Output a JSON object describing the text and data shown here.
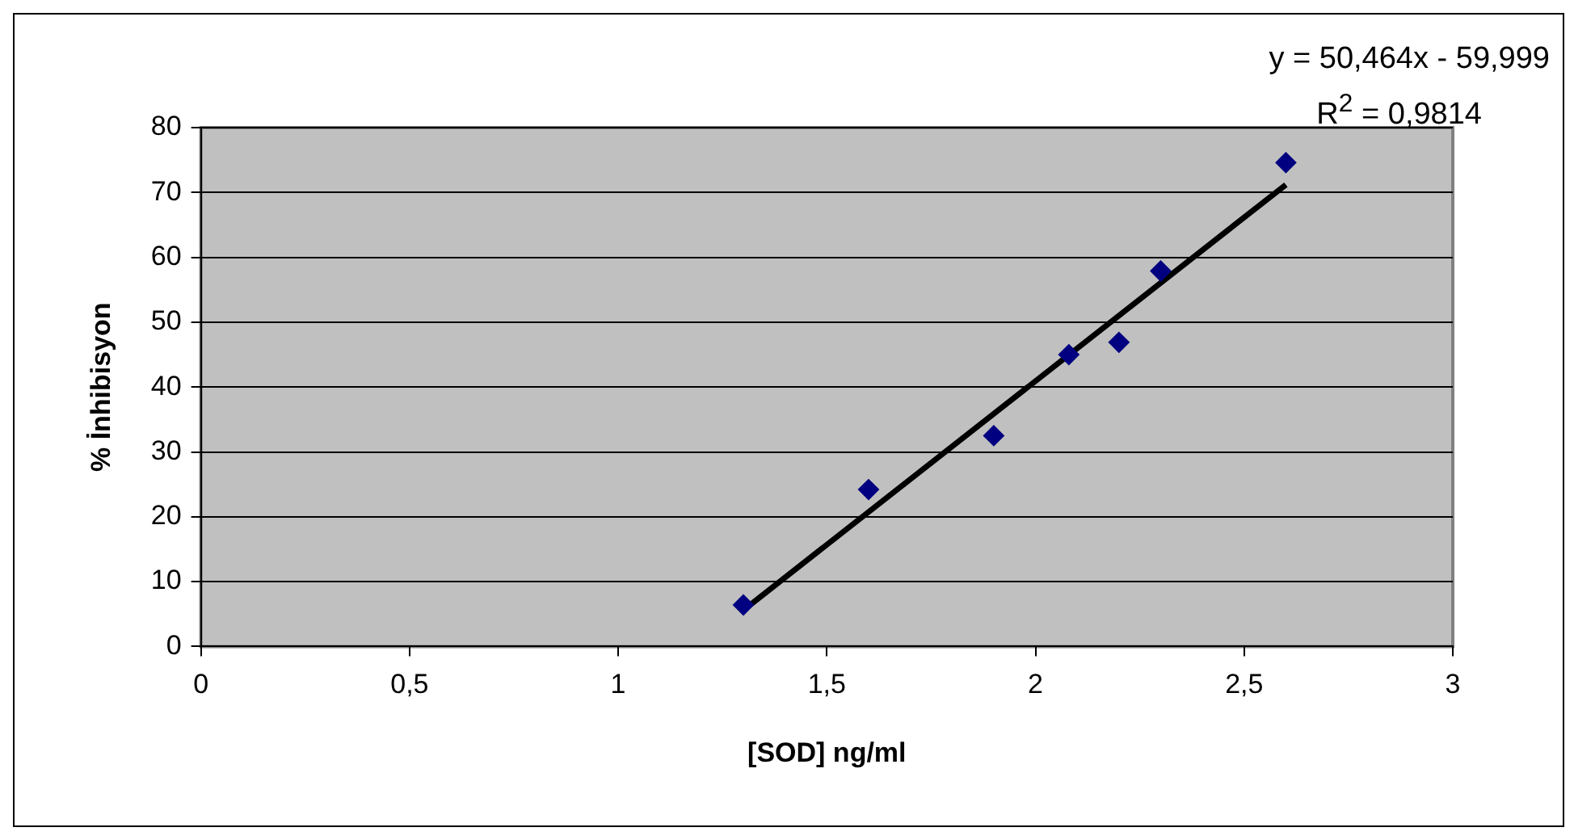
{
  "chart_data": {
    "type": "scatter",
    "xlabel": "[SOD] ng/ml",
    "ylabel": "% İnhibisyon",
    "annotations": [
      "y = 50,464x - 59,999",
      "R$^{2}$ = 0,9814"
    ],
    "series": [
      {
        "color": "#000080",
        "marker": "diamond",
        "x": [
          1.3,
          1.6,
          1.9,
          2.08,
          2.2,
          2.3,
          2.6
        ],
        "values": [
          6.4,
          24.2,
          32.5,
          45.0,
          46.9,
          57.9,
          74.6
        ]
      },
      {
        "type": "line",
        "color": "#000000",
        "marker": "none",
        "line_style": "solid",
        "x": [
          1.3,
          2.6
        ],
        "values": [
          5.6,
          71.2
        ]
      }
    ],
    "xlim": [
      0,
      3
    ],
    "xticks": [
      0,
      {
        "value": 0.5,
        "label": "0,5"
      },
      1,
      {
        "value": 1.5,
        "label": "1,5"
      },
      2,
      {
        "value": 2.5,
        "label": "2,5"
      },
      3
    ],
    "ylim": [
      0,
      80
    ],
    "yticks": [
      0,
      10,
      20,
      30,
      40,
      50,
      60,
      70,
      80
    ],
    "grid": "y",
    "legend": false
  }
}
